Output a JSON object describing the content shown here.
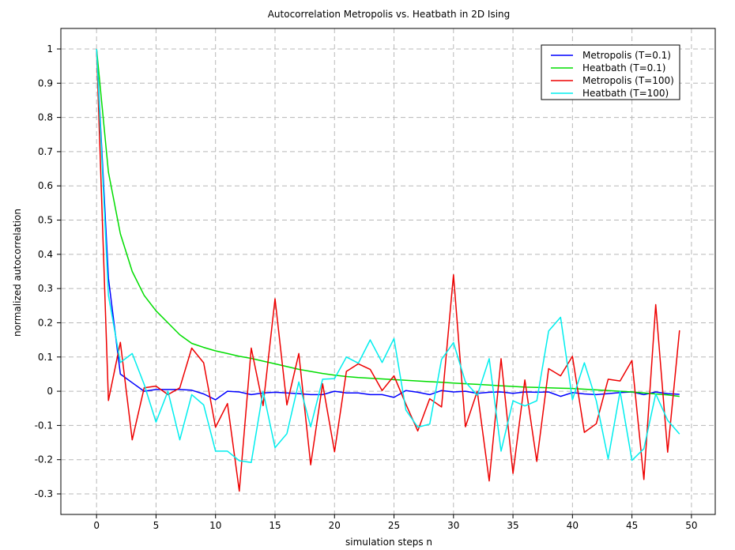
{
  "chart_data": {
    "type": "line",
    "title": "Autocorrelation Metropolis vs. Heatbath in 2D Ising",
    "xlabel": "simulation steps n",
    "ylabel": "normalized autocorrelation",
    "xlim": [
      -3,
      52
    ],
    "ylim": [
      -0.36,
      1.06
    ],
    "xticks": [
      0,
      5,
      10,
      15,
      20,
      25,
      30,
      35,
      40,
      45,
      50
    ],
    "yticks": [
      -0.3,
      -0.2,
      -0.1,
      0,
      0.1,
      0.2,
      0.3,
      0.4,
      0.5,
      0.6,
      0.7,
      0.8,
      0.9,
      1
    ],
    "ytick_labels": [
      "-0.3",
      "-0.2",
      "-0.1",
      "0",
      "0.1",
      "0.2",
      "0.3",
      "0.4",
      "0.5",
      "0.6",
      "0.7",
      "0.8",
      "0.9",
      "1"
    ],
    "grid": true,
    "legend_position": "top-right",
    "x": [
      0,
      1,
      2,
      3,
      4,
      5,
      6,
      7,
      8,
      9,
      10,
      11,
      12,
      13,
      14,
      15,
      16,
      17,
      18,
      19,
      20,
      21,
      22,
      23,
      24,
      25,
      26,
      27,
      28,
      29,
      30,
      31,
      32,
      33,
      34,
      35,
      36,
      37,
      38,
      39,
      40,
      41,
      42,
      43,
      44,
      45,
      46,
      47,
      48,
      49
    ],
    "series": [
      {
        "name": "Metropolis (T=0.1)",
        "color": "#0000ff",
        "values": [
          1.0,
          0.33,
          0.05,
          0.025,
          0.0,
          0.005,
          0.005,
          0.005,
          0.003,
          -0.008,
          -0.025,
          0.0,
          -0.002,
          -0.01,
          -0.005,
          -0.003,
          -0.005,
          -0.007,
          -0.01,
          -0.01,
          0.0,
          -0.005,
          -0.005,
          -0.01,
          -0.01,
          -0.018,
          0.002,
          -0.003,
          -0.01,
          0.002,
          -0.002,
          0.0,
          -0.006,
          -0.003,
          -0.002,
          -0.006,
          -0.002,
          -0.003,
          -0.002,
          -0.015,
          -0.004,
          -0.008,
          -0.01,
          -0.007,
          -0.004,
          -0.002,
          -0.01,
          -0.002,
          -0.007,
          -0.009
        ]
      },
      {
        "name": "Heatbath (T=0.1)",
        "color": "#00dd00",
        "values": [
          1.0,
          0.64,
          0.46,
          0.35,
          0.28,
          0.235,
          0.2,
          0.165,
          0.14,
          0.128,
          0.118,
          0.11,
          0.102,
          0.096,
          0.088,
          0.08,
          0.072,
          0.064,
          0.058,
          0.052,
          0.047,
          0.043,
          0.04,
          0.038,
          0.036,
          0.034,
          0.032,
          0.03,
          0.028,
          0.026,
          0.024,
          0.022,
          0.02,
          0.018,
          0.016,
          0.014,
          0.012,
          0.011,
          0.01,
          0.009,
          0.008,
          0.006,
          0.004,
          0.002,
          0.0,
          -0.002,
          -0.005,
          -0.008,
          -0.011,
          -0.015
        ]
      },
      {
        "name": "Metropolis (T=100)",
        "color": "#ee0000",
        "values": [
          1.0,
          -0.027,
          0.143,
          -0.142,
          0.01,
          0.015,
          -0.01,
          0.01,
          0.126,
          0.083,
          -0.105,
          -0.036,
          -0.292,
          0.126,
          -0.042,
          0.27,
          -0.04,
          0.11,
          -0.215,
          0.022,
          -0.177,
          0.058,
          0.08,
          0.064,
          0.002,
          0.045,
          -0.038,
          -0.116,
          -0.022,
          -0.046,
          0.34,
          -0.104,
          0.0,
          -0.262,
          0.095,
          -0.24,
          0.033,
          -0.205,
          0.066,
          0.045,
          0.102,
          -0.12,
          -0.095,
          0.035,
          0.03,
          0.09,
          -0.258,
          0.253,
          -0.178,
          0.178
        ]
      },
      {
        "name": "Heatbath (T=100)",
        "color": "#00eeee",
        "values": [
          1.0,
          0.28,
          0.084,
          0.11,
          0.02,
          -0.09,
          0.0,
          -0.142,
          -0.01,
          -0.04,
          -0.175,
          -0.175,
          -0.203,
          -0.208,
          0.0,
          -0.165,
          -0.124,
          0.027,
          -0.104,
          0.035,
          0.037,
          0.1,
          0.082,
          0.15,
          0.084,
          0.154,
          -0.055,
          -0.105,
          -0.096,
          0.093,
          0.142,
          0.027,
          -0.012,
          0.095,
          -0.175,
          -0.028,
          -0.043,
          -0.028,
          0.176,
          0.216,
          -0.025,
          0.083,
          -0.028,
          -0.198,
          0.0,
          -0.202,
          -0.168,
          -0.008,
          -0.085,
          -0.125
        ]
      }
    ]
  }
}
